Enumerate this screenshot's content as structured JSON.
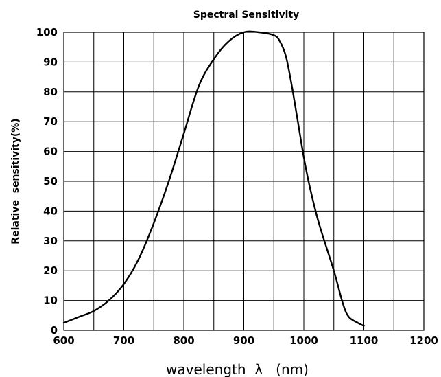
{
  "chart_data": {
    "type": "line",
    "title": "Spectral  Sensitivity",
    "xlabel": "wavelength  λ   (nm)",
    "ylabel": "Relative  sensitivity(%)",
    "xlim": [
      600,
      1200
    ],
    "ylim": [
      0,
      100
    ],
    "x_ticks": [
      "600",
      "700",
      "800",
      "900",
      "1000",
      "1100",
      "1200"
    ],
    "y_ticks": [
      "0",
      "10",
      "20",
      "30",
      "40",
      "50",
      "60",
      "70",
      "80",
      "90",
      "100"
    ],
    "grid": {
      "x_step": 50,
      "y_step": 10
    },
    "series": [
      {
        "color": "#000000",
        "x": [
          600,
          625,
          650,
          675,
          700,
          725,
          750,
          775,
          800,
          825,
          850,
          875,
          900,
          925,
          950,
          960,
          970,
          980,
          990,
          1000,
          1010,
          1025,
          1050,
          1065,
          1075,
          1090,
          1100
        ],
        "y": [
          2.5,
          4.5,
          6.5,
          10,
          15.5,
          24,
          36,
          50,
          66,
          82,
          91,
          97,
          100,
          100,
          99,
          97,
          92,
          82,
          70,
          58,
          48,
          36,
          20,
          9,
          4.5,
          2.5,
          1.5
        ]
      }
    ]
  }
}
